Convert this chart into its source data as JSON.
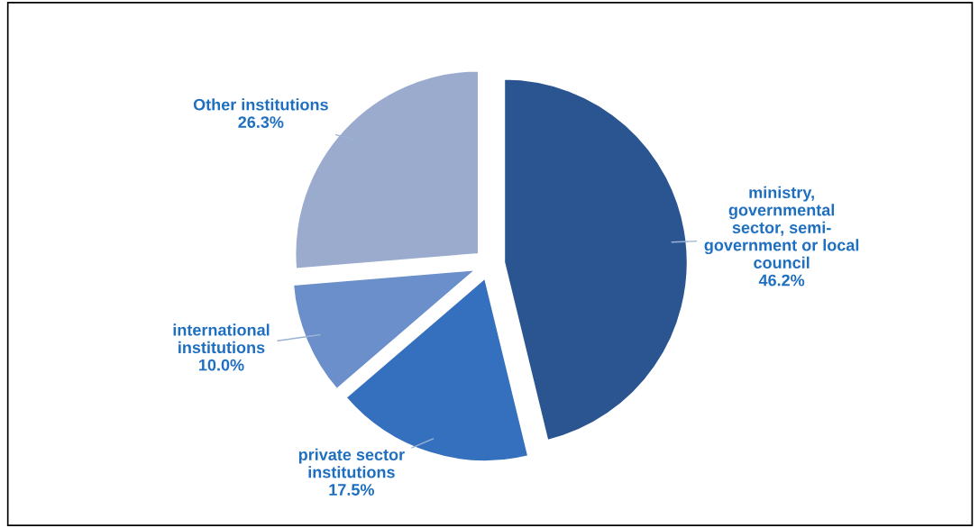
{
  "chart_data": {
    "type": "pie",
    "categories": [
      "ministry,\ngovernmental\nsector, semi-\ngovernment or local\ncouncil",
      "private sector\ninstitutions",
      "international\ninstitutions",
      "Other institutions"
    ],
    "values": [
      46.2,
      17.5,
      10.0,
      26.3
    ],
    "value_labels": [
      "46.2%",
      "17.5%",
      "10.0%",
      "26.3%"
    ],
    "colors": [
      "#2a5590",
      "#3470bd",
      "#6a8fca",
      "#9aabcd"
    ],
    "legend": false
  }
}
